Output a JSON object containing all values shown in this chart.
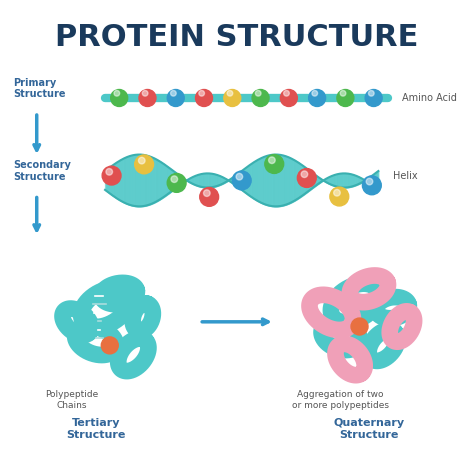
{
  "title": "PROTEIN STRUCTURE",
  "title_color": "#1a3a5c",
  "title_fontsize": 22,
  "background_color": "#ffffff",
  "teal_color": "#4dc8c8",
  "teal_dark": "#3ab0b0",
  "pink_color": "#f0a0b8",
  "arrow_color": "#3399cc",
  "label_color": "#336699",
  "anno_color": "#555555",
  "primary_label": "Primary\nStructure",
  "secondary_label": "Secondary\nStructure",
  "tertiary_label": "Tertiary\nStructure",
  "quaternary_label": "Quaternary\nStructure",
  "amino_acid_label": "Amino Acid",
  "helix_label": "Helix",
  "polypeptide_label": "Polypeptide\nChains",
  "aggregation_label": "Aggregation of two\nor more polypeptides",
  "bead_colors": [
    "#4db84d",
    "#e05050",
    "#3399cc",
    "#e05050",
    "#e8c040",
    "#4db84d",
    "#e05050",
    "#3399cc"
  ],
  "helix_bead_colors": [
    "#e05050",
    "#e8c040",
    "#4db84d",
    "#e05050",
    "#3399cc",
    "#4db84d",
    "#e05050",
    "#e8c040",
    "#3399cc"
  ],
  "orange_accent": "#e87040"
}
